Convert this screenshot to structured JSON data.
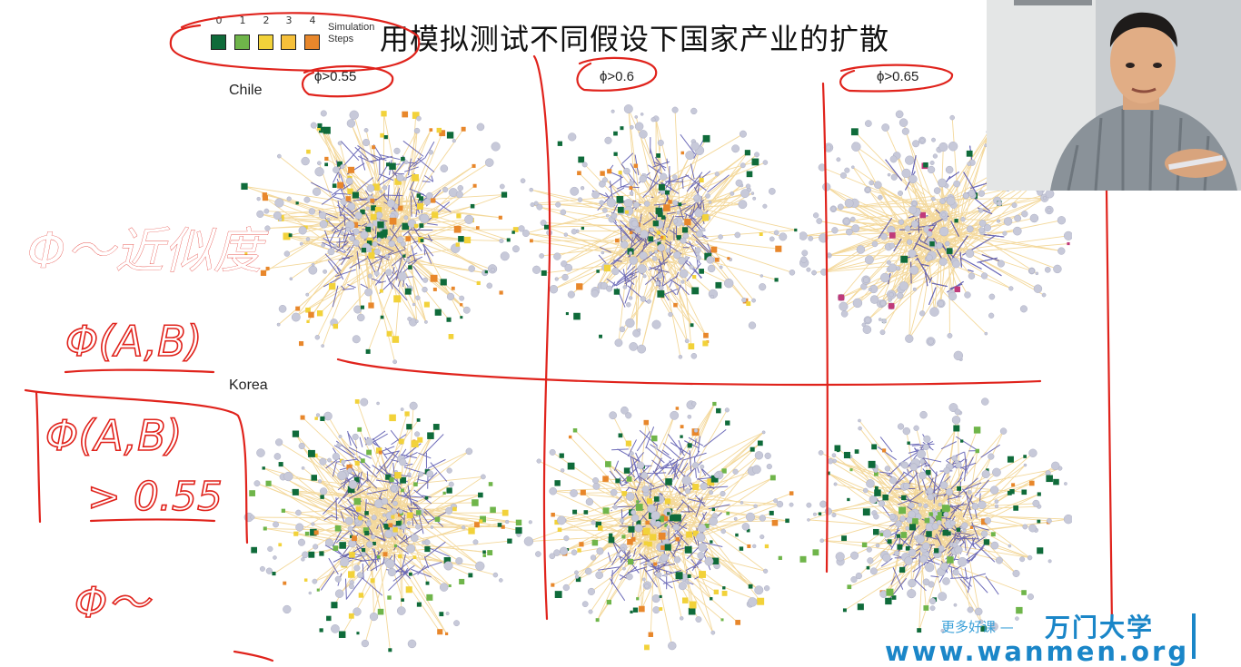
{
  "slide": {
    "title": "用模拟测试不同假设下国家产业的扩散",
    "legend": {
      "numbers": [
        "0",
        "1",
        "2",
        "3",
        "4"
      ],
      "colors": [
        "#0f6b3a",
        "#6fb54a",
        "#f2d23a",
        "#f6c03a",
        "#e8872b"
      ],
      "label_line1": "Simulation",
      "label_line2": "Steps"
    },
    "thresholds": [
      "ϕ>0.55",
      "ϕ>0.6",
      "ϕ>0.65"
    ],
    "rows": [
      "Chile",
      "Korea"
    ],
    "node_colors": {
      "edge": "#f2d28a",
      "link": "#4a48a8",
      "node_grey": "#c7c9d9",
      "green": "#0f6b3a",
      "light_green": "#6fb54a",
      "yellow": "#f2d23a",
      "orange": "#e8872b"
    }
  },
  "handwriting": {
    "color": "#e0231c",
    "line1": "Φ～近似度",
    "line2": "Φ(A,B)",
    "line3": "Φ(A,B)",
    "line4": "> 0.55",
    "line5": "Φ～"
  },
  "webcam": {
    "description_icon": "presenter-video-icon"
  },
  "watermark": {
    "tagline": "更多好课 —",
    "brand": "万门大学",
    "url": "www.wanmen.org"
  }
}
